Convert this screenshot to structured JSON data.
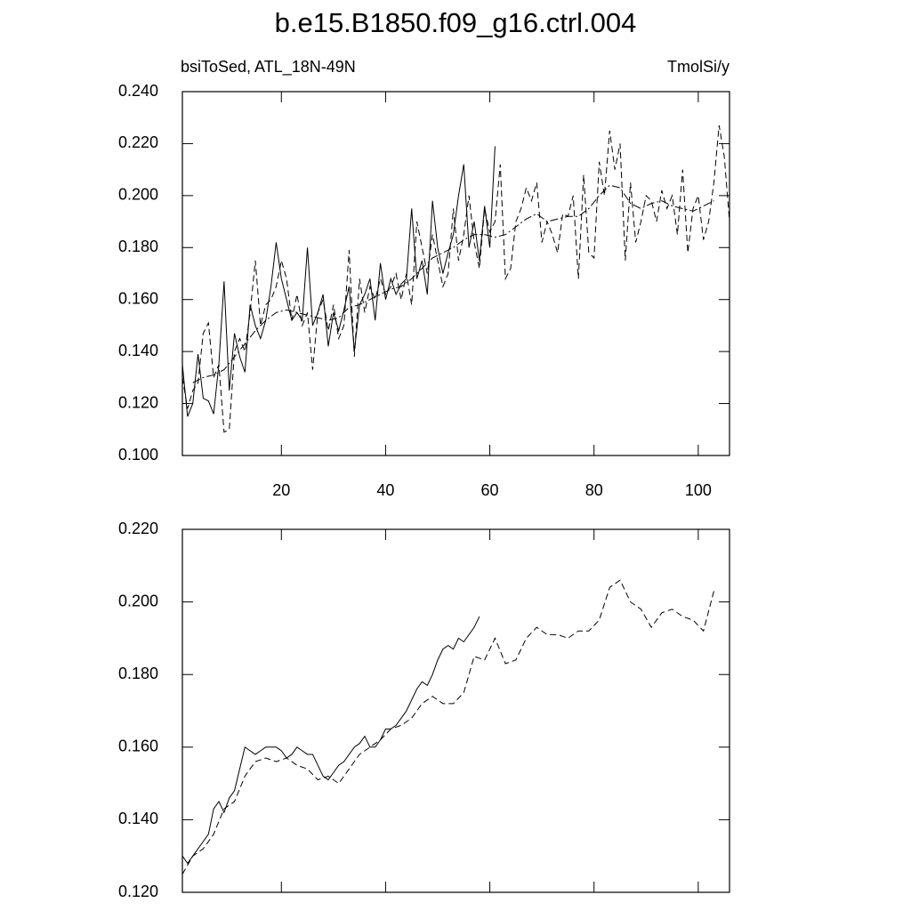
{
  "title": "b.e15.B1850.f09_g16.ctrl.004",
  "chart_data": [
    {
      "type": "line",
      "left_label": "bsiToSed, ATL_18N-49N",
      "right_label": "TmolSi/y",
      "xlim": [
        1,
        106
      ],
      "xticks": [
        20,
        40,
        60,
        80,
        100
      ],
      "xticklabels": true,
      "ylim": [
        0.1,
        0.24
      ],
      "yticks": [
        {
          "value": 0.1,
          "label": "0.100"
        },
        {
          "value": 0.12,
          "label": "0.120"
        },
        {
          "value": 0.14,
          "label": "0.140"
        },
        {
          "value": 0.16,
          "label": "0.160"
        },
        {
          "value": 0.18,
          "label": "0.180"
        },
        {
          "value": 0.2,
          "label": "0.200"
        },
        {
          "value": 0.22,
          "label": "0.220"
        },
        {
          "value": 0.24,
          "label": "0.240"
        }
      ],
      "series": [
        {
          "color": "#000000",
          "dash": "solid",
          "x": [
            1,
            2,
            3,
            4,
            5,
            6,
            7,
            8,
            9,
            10,
            11,
            12,
            13,
            14,
            15,
            16,
            17,
            18,
            19,
            20,
            21,
            22,
            23,
            24,
            25,
            26,
            27,
            28,
            29,
            30,
            31,
            32,
            33,
            34,
            35,
            36,
            37,
            38,
            39,
            40,
            41,
            42,
            43,
            44,
            45,
            46,
            47,
            48,
            49,
            50,
            51,
            52,
            53,
            54,
            55,
            56,
            57,
            58,
            59,
            60,
            61
          ],
          "values": [
            0.135,
            0.115,
            0.12,
            0.139,
            0.122,
            0.121,
            0.116,
            0.135,
            0.167,
            0.125,
            0.147,
            0.138,
            0.132,
            0.158,
            0.15,
            0.145,
            0.152,
            0.165,
            0.182,
            0.168,
            0.16,
            0.152,
            0.155,
            0.152,
            0.18,
            0.15,
            0.155,
            0.162,
            0.142,
            0.155,
            0.148,
            0.156,
            0.165,
            0.14,
            0.158,
            0.162,
            0.168,
            0.152,
            0.174,
            0.16,
            0.168,
            0.162,
            0.166,
            0.168,
            0.195,
            0.168,
            0.175,
            0.162,
            0.198,
            0.18,
            0.17,
            0.178,
            0.185,
            0.2,
            0.212,
            0.18,
            0.19,
            0.175,
            0.196,
            0.18,
            0.219
          ]
        },
        {
          "color": "#000000",
          "dash": "dashed",
          "x": [
            1,
            2,
            3,
            4,
            5,
            6,
            7,
            8,
            9,
            10,
            11,
            12,
            13,
            14,
            15,
            16,
            17,
            18,
            19,
            20,
            21,
            22,
            23,
            24,
            25,
            26,
            27,
            28,
            29,
            30,
            31,
            32,
            33,
            34,
            35,
            36,
            37,
            38,
            39,
            40,
            41,
            42,
            43,
            44,
            45,
            46,
            47,
            48,
            49,
            50,
            51,
            52,
            53,
            54,
            55,
            56,
            57,
            58,
            59,
            60,
            61,
            62,
            63,
            64,
            65,
            66,
            67,
            68,
            69,
            70,
            71,
            72,
            73,
            74,
            75,
            76,
            77,
            78,
            79,
            80,
            81,
            82,
            83,
            84,
            85,
            86,
            87,
            88,
            89,
            90,
            91,
            92,
            93,
            94,
            95,
            96,
            97,
            98,
            99,
            100,
            101,
            102,
            103,
            104,
            105,
            106
          ],
          "values": [
            0.13,
            0.118,
            0.125,
            0.128,
            0.147,
            0.151,
            0.13,
            0.135,
            0.109,
            0.11,
            0.14,
            0.145,
            0.14,
            0.155,
            0.175,
            0.15,
            0.158,
            0.16,
            0.165,
            0.175,
            0.168,
            0.152,
            0.162,
            0.15,
            0.155,
            0.133,
            0.155,
            0.16,
            0.148,
            0.158,
            0.145,
            0.15,
            0.179,
            0.138,
            0.168,
            0.155,
            0.165,
            0.16,
            0.168,
            0.162,
            0.165,
            0.17,
            0.16,
            0.17,
            0.158,
            0.19,
            0.18,
            0.17,
            0.185,
            0.175,
            0.165,
            0.17,
            0.195,
            0.175,
            0.185,
            0.2,
            0.182,
            0.172,
            0.195,
            0.186,
            0.19,
            0.212,
            0.168,
            0.172,
            0.19,
            0.195,
            0.203,
            0.198,
            0.205,
            0.182,
            0.19,
            0.185,
            0.178,
            0.193,
            0.192,
            0.2,
            0.168,
            0.208,
            0.178,
            0.176,
            0.213,
            0.2,
            0.225,
            0.21,
            0.22,
            0.175,
            0.205,
            0.182,
            0.19,
            0.2,
            0.198,
            0.19,
            0.202,
            0.195,
            0.2,
            0.185,
            0.21,
            0.178,
            0.195,
            0.2,
            0.183,
            0.19,
            0.205,
            0.227,
            0.215,
            0.19
          ]
        },
        {
          "color": "#000000",
          "dash": "dashdot",
          "x": [
            3,
            5,
            7,
            9,
            11,
            13,
            15,
            17,
            19,
            21,
            23,
            25,
            27,
            29,
            31,
            33,
            35,
            37,
            39,
            41,
            43,
            45,
            47,
            49,
            51,
            53,
            55,
            57,
            59,
            61,
            63,
            65,
            67,
            69,
            71,
            73,
            75,
            77,
            79,
            81,
            83,
            85,
            87,
            89,
            91,
            93,
            95,
            97,
            99,
            101,
            103
          ],
          "values": [
            0.128,
            0.13,
            0.131,
            0.133,
            0.138,
            0.143,
            0.148,
            0.152,
            0.155,
            0.156,
            0.155,
            0.154,
            0.153,
            0.152,
            0.153,
            0.157,
            0.158,
            0.16,
            0.162,
            0.164,
            0.165,
            0.168,
            0.172,
            0.176,
            0.178,
            0.18,
            0.183,
            0.185,
            0.185,
            0.184,
            0.185,
            0.188,
            0.191,
            0.193,
            0.19,
            0.191,
            0.192,
            0.192,
            0.195,
            0.2,
            0.204,
            0.203,
            0.197,
            0.195,
            0.197,
            0.198,
            0.196,
            0.195,
            0.194,
            0.196,
            0.198
          ]
        }
      ]
    },
    {
      "type": "line",
      "xlim": [
        1,
        106
      ],
      "xticks": [
        20,
        40,
        60,
        80,
        100
      ],
      "xticklabels": false,
      "ylim": [
        0.12,
        0.22
      ],
      "yticks": [
        {
          "value": 0.12,
          "label": "0.120"
        },
        {
          "value": 0.14,
          "label": "0.140"
        },
        {
          "value": 0.16,
          "label": "0.160"
        },
        {
          "value": 0.18,
          "label": "0.180"
        },
        {
          "value": 0.2,
          "label": "0.200"
        },
        {
          "value": 0.22,
          "label": "0.220"
        }
      ],
      "series": [
        {
          "color": "#000000",
          "dash": "solid",
          "x": [
            1,
            2,
            3,
            4,
            5,
            6,
            7,
            8,
            9,
            10,
            11,
            12,
            13,
            14,
            15,
            16,
            17,
            18,
            19,
            20,
            21,
            22,
            23,
            24,
            25,
            26,
            27,
            28,
            29,
            30,
            31,
            32,
            33,
            34,
            35,
            36,
            37,
            38,
            39,
            40,
            41,
            42,
            43,
            44,
            45,
            46,
            47,
            48,
            49,
            50,
            51,
            52,
            53,
            54,
            55,
            56,
            57,
            58
          ],
          "values": [
            0.13,
            0.128,
            0.13,
            0.132,
            0.134,
            0.136,
            0.143,
            0.145,
            0.142,
            0.146,
            0.148,
            0.154,
            0.16,
            0.159,
            0.158,
            0.159,
            0.16,
            0.16,
            0.16,
            0.159,
            0.157,
            0.158,
            0.16,
            0.159,
            0.158,
            0.158,
            0.155,
            0.152,
            0.151,
            0.153,
            0.155,
            0.156,
            0.158,
            0.16,
            0.161,
            0.163,
            0.16,
            0.16,
            0.162,
            0.165,
            0.165,
            0.166,
            0.168,
            0.17,
            0.173,
            0.176,
            0.178,
            0.177,
            0.18,
            0.184,
            0.187,
            0.188,
            0.187,
            0.19,
            0.189,
            0.191,
            0.193,
            0.196
          ]
        },
        {
          "color": "#000000",
          "dash": "dashed",
          "x": [
            1,
            3,
            5,
            7,
            9,
            11,
            13,
            15,
            17,
            19,
            21,
            23,
            25,
            27,
            29,
            31,
            33,
            35,
            37,
            39,
            41,
            43,
            45,
            47,
            49,
            51,
            53,
            55,
            57,
            59,
            61,
            63,
            65,
            67,
            69,
            71,
            73,
            75,
            77,
            79,
            81,
            83,
            85,
            87,
            89,
            91,
            93,
            95,
            97,
            99,
            101,
            103
          ],
          "values": [
            0.125,
            0.13,
            0.132,
            0.136,
            0.143,
            0.145,
            0.152,
            0.156,
            0.157,
            0.156,
            0.157,
            0.155,
            0.154,
            0.151,
            0.152,
            0.15,
            0.154,
            0.158,
            0.16,
            0.162,
            0.165,
            0.166,
            0.168,
            0.172,
            0.174,
            0.172,
            0.172,
            0.175,
            0.185,
            0.184,
            0.19,
            0.183,
            0.184,
            0.19,
            0.193,
            0.191,
            0.191,
            0.19,
            0.192,
            0.192,
            0.195,
            0.204,
            0.206,
            0.2,
            0.198,
            0.193,
            0.197,
            0.198,
            0.196,
            0.195,
            0.192,
            0.203
          ]
        }
      ]
    }
  ]
}
